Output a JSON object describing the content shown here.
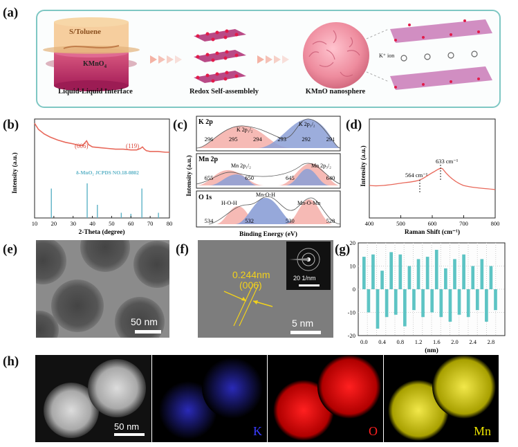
{
  "panel_labels": {
    "a": "(a)",
    "b": "(b)",
    "c": "(c)",
    "d": "(d)",
    "e": "(e)",
    "f": "(f)",
    "g": "(g)",
    "h": "(h)"
  },
  "panel_a": {
    "s_toluene": "S/Toluene",
    "kmno4_main": "KMnO",
    "kmno4_sub": "4",
    "cap_interface": "Liquid-Liquid Interface",
    "cap_redox": "Redox Self-assemblely",
    "cap_sphere": "KMnO nanosphere",
    "k_ion": "K⁺ ion"
  },
  "panel_b": {
    "ylabel": "Intensity (a.u.)",
    "xlabel": "2-Theta (degree)",
    "peak1": "(006)",
    "peak2": "(119)",
    "ref_text": "δ-MnO₂ JCPDS NO.18-0802",
    "xticks": [
      "10",
      "20",
      "30",
      "40",
      "50",
      "60",
      "70",
      "80"
    ],
    "colors": {
      "curve": "#e8685a",
      "ref": "#5bb2c6"
    }
  },
  "panel_c": {
    "ylabel": "Intensity (a.u.)",
    "xlabel": "Binding Energy (eV)",
    "k_title": "K 2p",
    "k_peak1": "K 2p₁/₂",
    "k_peak2": "K 2p₃/₂",
    "k_ticks": [
      "296",
      "295",
      "294",
      "293",
      "292",
      "291"
    ],
    "mn_title": "Mn 2p",
    "mn_peak1": "Mn 2p₁/₂",
    "mn_peak2": "Mn 2p₃/₂",
    "mn_ticks": [
      "655",
      "650",
      "645",
      "640"
    ],
    "o_title": "O 1s",
    "o_peak1": "H-O-H",
    "o_peak2": "Mn-O-H",
    "o_peak3": "Mn-O-Mn",
    "o_ticks": [
      "534",
      "532",
      "530",
      "528"
    ]
  },
  "panel_d": {
    "ylabel": "Intensity (a.u.)",
    "xlabel": "Raman Shift (cm⁻¹)",
    "peak1": "564 cm⁻¹",
    "peak2": "633 cm⁻¹",
    "xticks": [
      "400",
      "500",
      "600",
      "700",
      "800"
    ]
  },
  "panel_e": {
    "scale": "50 nm"
  },
  "panel_f": {
    "d_spacing": "0.244nm",
    "plane": "(006)",
    "scale": "5 nm",
    "saed_scale": "20 1/nm"
  },
  "panel_g": {
    "xlabel": "(nm)",
    "yticks": [
      "20",
      "10",
      "0",
      "-10",
      "-20"
    ],
    "xticks": [
      "0.0",
      "0.4",
      "0.8",
      "1.2",
      "1.6",
      "2.0",
      "2.4",
      "2.8"
    ]
  },
  "panel_h": {
    "scale": "50 nm",
    "k_label": "K",
    "o_label": "O",
    "mn_label": "Mn",
    "colors": {
      "k": "#3a3cff",
      "o": "#ff2020",
      "mn": "#e8e000"
    }
  },
  "chart_data": [
    {
      "type": "line",
      "title": "",
      "xlabel": "2-Theta (degree)",
      "ylabel": "Intensity (a.u.)",
      "xlim": [
        10,
        80
      ],
      "series": [
        {
          "x": [
            10,
            12,
            15,
            18,
            22,
            26,
            30,
            33,
            35,
            36,
            37,
            38,
            40,
            44,
            48,
            52,
            56,
            60,
            63,
            65,
            66,
            67,
            68,
            70,
            74,
            78,
            80
          ],
          "values": [
            0.98,
            0.9,
            0.84,
            0.8,
            0.76,
            0.73,
            0.71,
            0.69,
            0.69,
            0.72,
            0.75,
            0.7,
            0.67,
            0.66,
            0.65,
            0.64,
            0.64,
            0.63,
            0.63,
            0.65,
            0.67,
            0.64,
            0.62,
            0.61,
            0.61,
            0.6,
            0.6
          ]
        }
      ],
      "reference_sticks": {
        "x": [
          18.7,
          37.3,
          42.6,
          55.0,
          60.0,
          65.7,
          74.3
        ],
        "values": [
          0.85,
          1.0,
          0.38,
          0.15,
          0.12,
          0.85,
          0.15
        ]
      }
    },
    {
      "type": "bar",
      "title": "",
      "xlabel": "(nm)",
      "ylim": [
        -20,
        20
      ],
      "x": [
        0.0,
        0.1,
        0.2,
        0.3,
        0.4,
        0.5,
        0.6,
        0.7,
        0.8,
        0.9,
        1.0,
        1.1,
        1.2,
        1.3,
        1.4,
        1.5,
        1.6,
        1.7,
        1.8,
        1.9,
        2.0,
        2.1,
        2.2,
        2.3,
        2.4,
        2.5,
        2.6,
        2.7,
        2.8,
        2.9
      ],
      "values": [
        14,
        -10,
        15,
        -17,
        8,
        -12,
        16,
        -11,
        15,
        -16,
        10,
        -9,
        13,
        -12,
        14,
        -10,
        17,
        -12,
        9,
        -14,
        13,
        -11,
        15,
        -12,
        10,
        -9,
        13,
        -14,
        10,
        -9
      ]
    }
  ]
}
